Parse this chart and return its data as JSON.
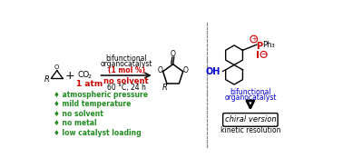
{
  "bg_color": "#ffffff",
  "colors": {
    "black": "#000000",
    "red": "#cc0000",
    "green": "#228B22",
    "blue": "#0000cc",
    "gray": "#888888"
  },
  "bullet_items": [
    "♦ atmospheric pressure",
    "♦ mild temperature",
    "♦ no solvent",
    "♦ no metal",
    "♦ low catalyst loading"
  ]
}
